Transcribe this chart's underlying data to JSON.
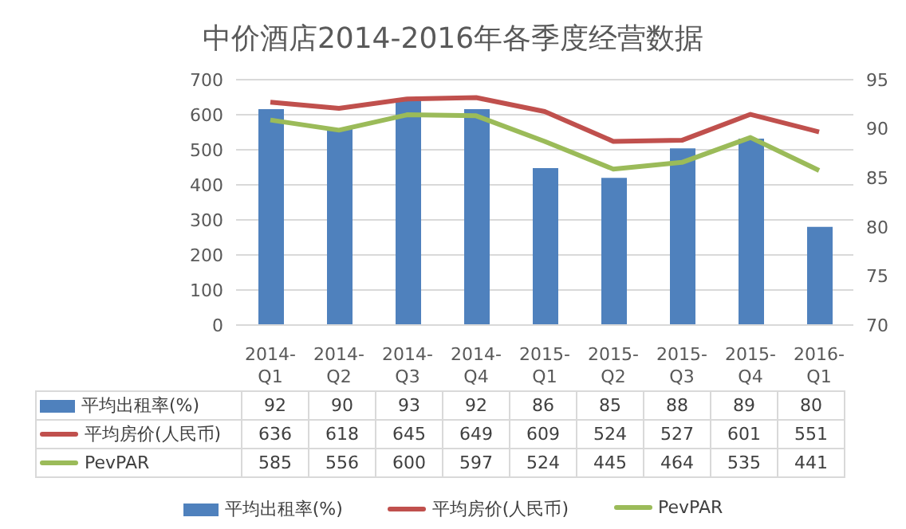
{
  "chart_data": {
    "type": "bar",
    "title": "中价酒店2014-2016年各季度经营数据",
    "categories": [
      "2014-Q1",
      "2014-Q2",
      "2014-Q3",
      "2014-Q4",
      "2015-Q1",
      "2015-Q2",
      "2015-Q3",
      "2015-Q4",
      "2016-Q1"
    ],
    "series": [
      {
        "name": "平均出租率(%)",
        "axis": "y2",
        "color": "#4f81bd",
        "values": [
          92,
          90,
          93,
          92,
          86,
          85,
          88,
          89,
          80
        ]
      },
      {
        "name": "平均房价(人民币)",
        "type": "line",
        "color": "#c0504d",
        "values": [
          636,
          618,
          645,
          649,
          609,
          524,
          527,
          601,
          551
        ]
      },
      {
        "name": "PevPAR",
        "type": "line",
        "color": "#9bbb59",
        "values": [
          585,
          556,
          600,
          597,
          524,
          445,
          464,
          535,
          441
        ]
      }
    ],
    "ylim": [
      0,
      700
    ],
    "yticks": [
      0,
      100,
      200,
      300,
      400,
      500,
      600,
      700
    ],
    "y2lim": [
      70,
      95
    ],
    "y2ticks": [
      70,
      75,
      80,
      85,
      90,
      95
    ],
    "grid": "y",
    "legend": "bottom",
    "marker": "none",
    "line_style": "solid",
    "data_labels": true
  }
}
